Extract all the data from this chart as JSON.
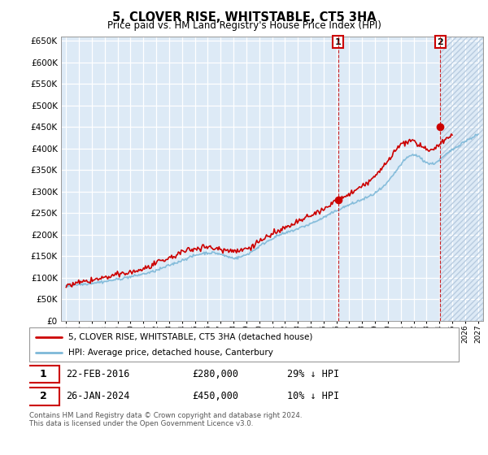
{
  "title": "5, CLOVER RISE, WHITSTABLE, CT5 3HA",
  "subtitle": "Price paid vs. HM Land Registry's House Price Index (HPI)",
  "hpi_label": "HPI: Average price, detached house, Canterbury",
  "price_label": "5, CLOVER RISE, WHITSTABLE, CT5 3HA (detached house)",
  "hpi_color": "#7db8d8",
  "price_color": "#cc0000",
  "vline_color": "#cc0000",
  "annotation_color": "#cc0000",
  "bg_color": "#ddeaf6",
  "ylim": [
    0,
    660000
  ],
  "yticks": [
    0,
    50000,
    100000,
    150000,
    200000,
    250000,
    300000,
    350000,
    400000,
    450000,
    500000,
    550000,
    600000,
    650000
  ],
  "xlim_start": 1994.6,
  "xlim_end": 2027.4,
  "transaction1_date": 2016.13,
  "transaction1_price": 280000,
  "transaction2_date": 2024.08,
  "transaction2_price": 450000,
  "footer": "Contains HM Land Registry data © Crown copyright and database right 2024.\nThis data is licensed under the Open Government Licence v3.0.",
  "legend_entry1_date": "22-FEB-2016",
  "legend_entry1_price": "£280,000",
  "legend_entry1_note": "29% ↓ HPI",
  "legend_entry2_date": "26-JAN-2024",
  "legend_entry2_price": "£450,000",
  "legend_entry2_note": "10% ↓ HPI",
  "hatch_start": 2024.08
}
